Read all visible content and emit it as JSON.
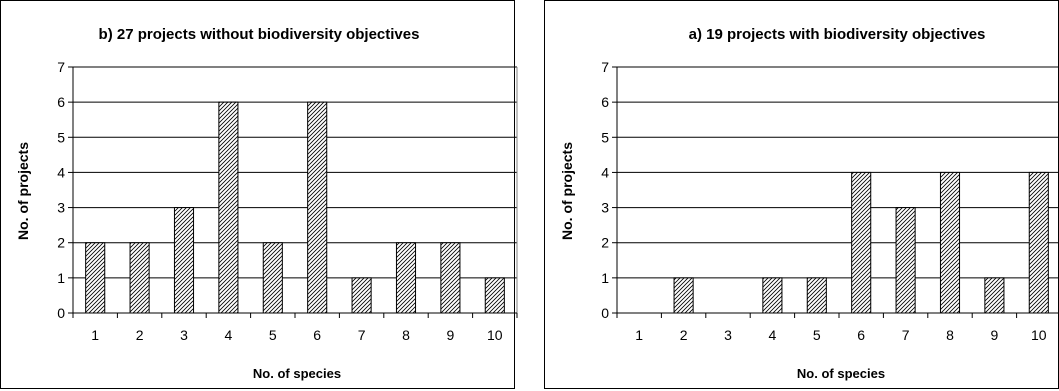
{
  "chart_data": [
    {
      "type": "bar",
      "title": "b) 27 projects without biodiversity objectives",
      "xlabel": "No. of species",
      "ylabel": "No. of projects",
      "categories": [
        "1",
        "2",
        "3",
        "4",
        "5",
        "6",
        "7",
        "8",
        "9",
        "10"
      ],
      "values": [
        2,
        2,
        3,
        6,
        2,
        6,
        1,
        2,
        2,
        1
      ],
      "ylim": [
        0,
        7
      ],
      "yticks": [
        "0",
        "1",
        "2",
        "3",
        "4",
        "5",
        "6",
        "7"
      ],
      "grid": true,
      "bar_fill": "hatched"
    },
    {
      "type": "bar",
      "title": "a) 19 projects with biodiversity objectives",
      "xlabel": "No. of species",
      "ylabel": "No. of projects",
      "categories": [
        "1",
        "2",
        "3",
        "4",
        "5",
        "6",
        "7",
        "8",
        "9",
        "10"
      ],
      "values": [
        0,
        1,
        0,
        1,
        1,
        4,
        3,
        4,
        1,
        4
      ],
      "ylim": [
        0,
        7
      ],
      "yticks": [
        "0",
        "1",
        "2",
        "3",
        "4",
        "5",
        "6",
        "7"
      ],
      "grid": true,
      "bar_fill": "hatched"
    }
  ]
}
